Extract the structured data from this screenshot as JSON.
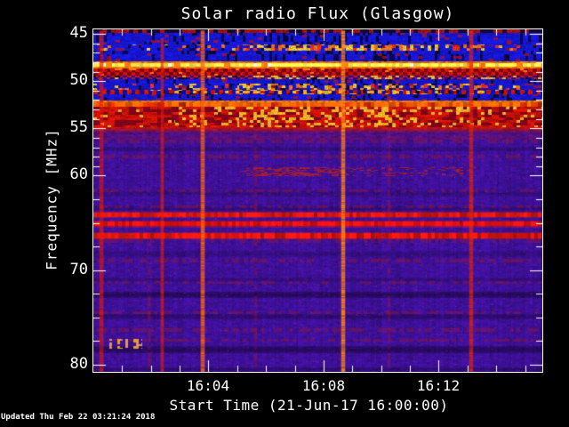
{
  "footer": {
    "updated": "Updated Thu Feb 22 03:21:24 2018"
  },
  "chart_data": {
    "type": "heatmap",
    "title": "Solar radio Flux (Glasgow)",
    "xlabel": "Start Time (21-Jun-17 16:00:00)",
    "ylabel": "Frequency [MHz]",
    "x_axis": {
      "start_minutes": 0,
      "end_minutes": 15.6,
      "major": [
        {
          "t": 4,
          "label": "16:04"
        },
        {
          "t": 8,
          "label": "16:08"
        },
        {
          "t": 12,
          "label": "16:12"
        }
      ],
      "minor_minutes": [
        1,
        2,
        3,
        5,
        6,
        7,
        9,
        10,
        11,
        13,
        14,
        15
      ]
    },
    "y_axis": {
      "top_mhz": 44.53,
      "bottom_mhz": 80.75,
      "major": [
        45,
        50,
        55,
        60,
        70,
        80
      ],
      "minor": [
        46,
        47,
        48,
        49,
        51,
        52,
        53,
        54,
        56,
        57,
        58,
        59,
        62.5,
        65,
        67.5,
        72.5,
        75,
        77.5
      ]
    },
    "palette": {
      "blue": "#1616d2",
      "blue_dim": "#0e0eaa",
      "comb_red": "#c81408",
      "yellow": "#f2e64a",
      "yellow_hot": "#fff8c8",
      "orange": "#ff7808",
      "orange_band": "#ff6202",
      "red": "#cd1205",
      "red_dark": "#78001a",
      "purple": "#3e1098",
      "speck_red": "#96162e",
      "blob_red": "#cd2309",
      "yellow_dash": "#ffb425",
      "burst_yellow": "#ffd028",
      "burst_orange": "#ff7a10",
      "burst_red": "#ff3008",
      "frame": "#ffffff",
      "background": "#000000"
    },
    "bands": [
      {
        "f0": 44.53,
        "f1": 44.95,
        "type": "toprow",
        "seed": 1
      },
      {
        "f0": 44.95,
        "f1": 46.1,
        "type": "blue",
        "seed": 2
      },
      {
        "f0": 46.1,
        "f1": 46.75,
        "type": "blue_burst",
        "seed": 3
      },
      {
        "f0": 46.75,
        "f1": 47.95,
        "type": "blue",
        "seed": 4
      },
      {
        "f0": 47.95,
        "f1": 48.1,
        "type": "orange_edge",
        "seed": 5
      },
      {
        "f0": 48.1,
        "f1": 48.52,
        "type": "yellow",
        "seed": 6
      },
      {
        "f0": 48.52,
        "f1": 48.66,
        "type": "orange_edge",
        "seed": 7
      },
      {
        "f0": 48.66,
        "f1": 49.4,
        "type": "red_comb",
        "seed": 8
      },
      {
        "f0": 49.4,
        "f1": 49.78,
        "type": "blue_comb",
        "seed": 9
      },
      {
        "f0": 49.78,
        "f1": 50.3,
        "type": "blue",
        "seed": 10
      },
      {
        "f0": 50.3,
        "f1": 50.95,
        "type": "blue_burst",
        "seed": 11
      },
      {
        "f0": 50.95,
        "f1": 51.4,
        "type": "blue_comb",
        "seed": 12
      },
      {
        "f0": 51.4,
        "f1": 52.1,
        "type": "blue",
        "seed": 13
      },
      {
        "f0": 52.1,
        "f1": 52.26,
        "type": "orange_edge",
        "seed": 14
      },
      {
        "f0": 52.26,
        "f1": 52.72,
        "type": "orange_band",
        "seed": 15
      },
      {
        "f0": 52.72,
        "f1": 54.9,
        "type": "red",
        "seed": 16
      },
      {
        "f0": 54.9,
        "f1": 55.6,
        "type": "red_fade",
        "seed": 17
      },
      {
        "f0": 55.6,
        "f1": 80.75,
        "type": "purple",
        "seed": 18
      }
    ],
    "purple_features": {
      "dark_rows": [
        {
          "f": 57.2,
          "hw": 0.25,
          "a": 0.22
        },
        {
          "f": 61.9,
          "hw": 0.3,
          "a": 0.18
        },
        {
          "f": 63.5,
          "hw": 0.25,
          "a": 0.22
        },
        {
          "f": 68.3,
          "hw": 0.3,
          "a": 0.18
        },
        {
          "f": 71.0,
          "hw": 0.25,
          "a": 0.18
        },
        {
          "f": 72.6,
          "hw": 0.35,
          "a": 0.42
        },
        {
          "f": 74.9,
          "hw": 0.3,
          "a": 0.3
        },
        {
          "f": 78.4,
          "hw": 0.4,
          "a": 0.42
        },
        {
          "f": 80.5,
          "hw": 0.25,
          "a": 0.28
        }
      ],
      "comb_rows": [
        {
          "f": 56.4
        },
        {
          "f": 58.0
        },
        {
          "f": 61.6
        },
        {
          "f": 63.3
        },
        {
          "f": 66.9
        },
        {
          "f": 69.0
        },
        {
          "f": 71.3
        },
        {
          "f": 74.5
        },
        {
          "f": 76.3
        },
        {
          "f": 77.4
        }
      ],
      "red_lines": [
        {
          "f": 64.15,
          "hw": 0.22,
          "c": "#e01505"
        },
        {
          "f": 65.1,
          "hw": 0.24,
          "c": "#ea1004"
        },
        {
          "f": 66.35,
          "hw": 0.26,
          "c": "#e01505"
        }
      ],
      "blob": {
        "f0": 59.15,
        "f1": 60.05,
        "t0": 5.1,
        "t1": 13.3,
        "dt0": 5.3,
        "dt1": 8.7
      },
      "yellow_dashes": {
        "f0": 77.3,
        "f1": 78.35,
        "t0": 0.55,
        "t1": 1.7
      },
      "tinge": {
        "f0": 55.6,
        "f1": 56.15,
        "a": 0.2
      }
    },
    "streaks": [
      {
        "t": 0.26,
        "f0": 44.6,
        "f1": 80.75,
        "c": "#e01808",
        "a": 0.8,
        "w": 1.6,
        "dashed": false
      },
      {
        "t": 1.93,
        "f0": 66.0,
        "f1": 80.75,
        "c": "#c81508",
        "a": 0.5,
        "w": 1.3,
        "dashed": true
      },
      {
        "t": 2.38,
        "f0": 45.5,
        "f1": 80.75,
        "c": "#e41a06",
        "a": 0.85,
        "w": 1.7,
        "dashed": false
      },
      {
        "t": 3.79,
        "f0": 44.6,
        "f1": 80.75,
        "c": "#ff6612",
        "a": 0.9,
        "w": 1.9,
        "dashed": false
      },
      {
        "t": 5.62,
        "f0": 55.6,
        "f1": 80.75,
        "c": "#cc1a08",
        "a": 0.3,
        "w": 1.2,
        "dashed": true
      },
      {
        "t": 8.67,
        "f0": 44.6,
        "f1": 80.75,
        "c": "#ff8418",
        "a": 0.95,
        "w": 2.0,
        "dashed": false
      },
      {
        "t": 10.25,
        "f0": 55.6,
        "f1": 80.75,
        "c": "#c81808",
        "a": 0.28,
        "w": 1.2,
        "dashed": true
      },
      {
        "t": 13.12,
        "f0": 44.6,
        "f1": 80.75,
        "c": "#e62408",
        "a": 0.85,
        "w": 1.8,
        "dashed": false
      }
    ],
    "burst_envelope": [
      [
        0,
        2.8,
        0.1
      ],
      [
        2.8,
        5.0,
        0.32
      ],
      [
        5.0,
        10.6,
        0.62
      ],
      [
        10.6,
        13.6,
        0.38
      ],
      [
        13.6,
        15.6,
        0.15
      ]
    ]
  }
}
